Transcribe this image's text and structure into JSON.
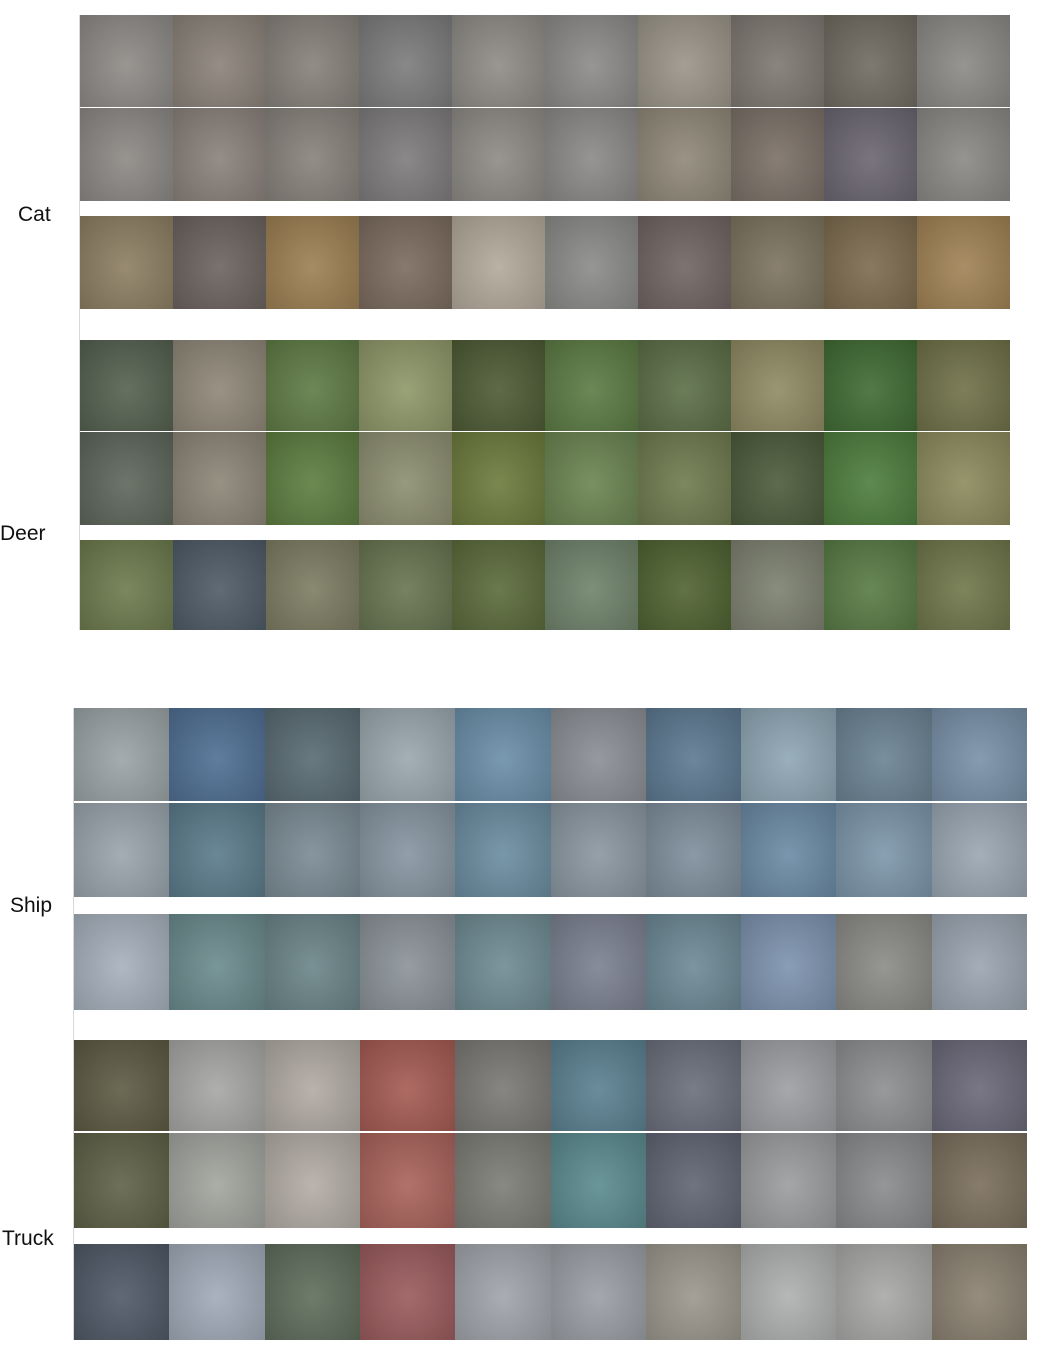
{
  "figure": {
    "panels": [
      {
        "id": "top",
        "groups": [
          {
            "label": "Cat",
            "rows": [
              {
                "role": "row-1",
                "tiles": [
                  "#8d8a86",
                  "#8a8178",
                  "#858079",
                  "#7c7b7c",
                  "#8e8b86",
                  "#8c8a88",
                  "#9a9488",
                  "#7d7770",
                  "#6f6a60",
                  "#8b8985"
                ]
              },
              {
                "role": "row-2",
                "tiles": [
                  "#8b8884",
                  "#89817a",
                  "#86817a",
                  "#7d7b7c",
                  "#8d8a85",
                  "#8b8987",
                  "#8f8778",
                  "#7a6f66",
                  "#6a6570",
                  "#8a8885"
                ]
              },
              {
                "role": "row-3",
                "tiles": [
                  "#8c7e62",
                  "#6b625d",
                  "#9c7f52",
                  "#7a6a5d",
                  "#b2a99a",
                  "#8a8b88",
                  "#6f6462",
                  "#7c735e",
                  "#7c6a4e",
                  "#a08254"
                ]
              }
            ]
          },
          {
            "label": "Deer",
            "rows": [
              {
                "role": "row-1",
                "tiles": [
                  "#54604f",
                  "#8e8677",
                  "#5e7a44",
                  "#8e9768",
                  "#4c5a33",
                  "#5b7a43",
                  "#5b6e47",
                  "#8f8a62",
                  "#3f6a32",
                  "#6f7047"
                ]
              },
              {
                "role": "row-2",
                "tiles": [
                  "#5c665a",
                  "#8c8476",
                  "#5c7c3f",
                  "#8c8e70",
                  "#6c7a3b",
                  "#6a8450",
                  "#6e7a4d",
                  "#4b5a3a",
                  "#4c7c3c",
                  "#8c8a5c"
                ]
              },
              {
                "role": "row-3",
                "tiles": [
                  "#6c7a4c",
                  "#4e5a66",
                  "#7c7c62",
                  "#66744f",
                  "#5a6a3a",
                  "#6e826a",
                  "#4f6230",
                  "#7c806f",
                  "#577a43",
                  "#6f7649"
                ]
              }
            ]
          }
        ]
      },
      {
        "id": "bottom",
        "groups": [
          {
            "label": "Ship",
            "rows": [
              {
                "role": "row-1",
                "tiles": [
                  "#9aa3a6",
                  "#4e6e92",
                  "#586a72",
                  "#9aa7ae",
                  "#6a8ea8",
                  "#8a8e94",
                  "#5c7890",
                  "#8ea6b4",
                  "#6a8292",
                  "#7890a8"
                ]
              },
              {
                "role": "row-2",
                "tiles": [
                  "#9aa4ac",
                  "#5a7a8a",
                  "#7a8a94",
                  "#8694a0",
                  "#6a8ca0",
                  "#8a96a0",
                  "#7e8e9c",
                  "#6a8aa4",
                  "#7c96aa",
                  "#9aa6b2"
                ]
              },
              {
                "role": "row-3",
                "tiles": [
                  "#a6b0bc",
                  "#6a8a8c",
                  "#6a8488",
                  "#8a9298",
                  "#6e8a92",
                  "#7a8090",
                  "#6c8894",
                  "#7c92ae",
                  "#8a8a86",
                  "#9aa4b0"
                ]
              }
            ]
          },
          {
            "label": "Truck",
            "rows": [
              {
                "role": "row-1",
                "tiles": [
                  "#5c5a42",
                  "#a6a6a4",
                  "#b0aaa2",
                  "#a45a52",
                  "#7a7874",
                  "#5a8090",
                  "#6a6e7a",
                  "#9c9ea2",
                  "#8c8e90",
                  "#6a6878"
                ]
              },
              {
                "role": "row-2",
                "tiles": [
                  "#5e6046",
                  "#a2a49e",
                  "#b2aca4",
                  "#a8625a",
                  "#7a7c74",
                  "#5a8a8e",
                  "#5e6472",
                  "#9a9c9e",
                  "#888a8c",
                  "#7a6e5c"
                ]
              },
              {
                "role": "row-3",
                "tiles": [
                  "#4e5866",
                  "#a0aab8",
                  "#5e6c5a",
                  "#9a5a5c",
                  "#a0a4aa",
                  "#9a9ea4",
                  "#9a968c",
                  "#aeb0b0",
                  "#a8a8a6",
                  "#8a8070"
                ]
              }
            ]
          }
        ]
      }
    ]
  }
}
